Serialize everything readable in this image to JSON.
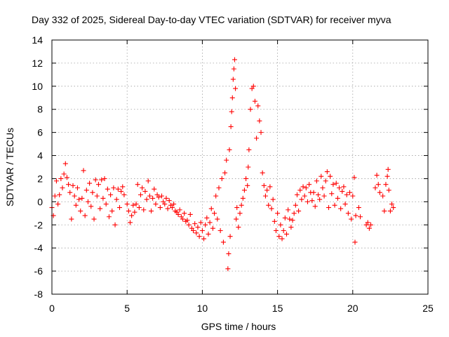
{
  "chart_data": {
    "type": "scatter",
    "title": "Day 332 of 2025, Sidereal Day-to-day VTEC variation (SDTVAR) for receiver myva",
    "xlabel": "GPS time / hours",
    "ylabel": "SDTVAR / TECUs",
    "xlim": [
      0,
      25
    ],
    "ylim": [
      -8,
      14
    ],
    "xticks": [
      0,
      5,
      10,
      15,
      20,
      25
    ],
    "xtick_labels": [
      "0",
      "5",
      "10",
      "15",
      "20",
      "25"
    ],
    "yticks": [
      -8,
      -6,
      -4,
      -2,
      0,
      2,
      4,
      6,
      8,
      10,
      12,
      14
    ],
    "ytick_labels": [
      "-8",
      "-6",
      "-4",
      "-2",
      "0",
      "2",
      "4",
      "6",
      "8",
      "10",
      "12",
      "14"
    ],
    "grid": true,
    "marker": "+",
    "color": "#ff0000",
    "series": [
      {
        "name": "SDTVAR",
        "points": [
          [
            0.0,
            -0.5
          ],
          [
            0.1,
            -1.2
          ],
          [
            0.2,
            0.5
          ],
          [
            0.3,
            1.8
          ],
          [
            0.4,
            -0.2
          ],
          [
            0.5,
            0.6
          ],
          [
            0.6,
            2.0
          ],
          [
            0.7,
            1.2
          ],
          [
            0.8,
            2.4
          ],
          [
            0.9,
            3.3
          ],
          [
            1.0,
            2.1
          ],
          [
            1.1,
            1.5
          ],
          [
            1.2,
            0.8
          ],
          [
            1.3,
            -1.5
          ],
          [
            1.4,
            1.4
          ],
          [
            1.5,
            0.5
          ],
          [
            1.6,
            -0.3
          ],
          [
            1.7,
            1.2
          ],
          [
            1.8,
            0.2
          ],
          [
            1.9,
            -0.8
          ],
          [
            2.0,
            0.3
          ],
          [
            2.1,
            2.7
          ],
          [
            2.2,
            -1.2
          ],
          [
            2.3,
            1.0
          ],
          [
            2.4,
            0.0
          ],
          [
            2.5,
            1.6
          ],
          [
            2.6,
            -0.4
          ],
          [
            2.7,
            0.8
          ],
          [
            2.8,
            -1.5
          ],
          [
            2.9,
            1.9
          ],
          [
            3.0,
            0.5
          ],
          [
            3.1,
            1.5
          ],
          [
            3.2,
            -0.6
          ],
          [
            3.3,
            1.9
          ],
          [
            3.4,
            0.3
          ],
          [
            3.5,
            2.0
          ],
          [
            3.6,
            -0.2
          ],
          [
            3.7,
            1.1
          ],
          [
            3.8,
            -1.3
          ],
          [
            3.9,
            0.6
          ],
          [
            4.0,
            -0.8
          ],
          [
            4.1,
            1.2
          ],
          [
            4.2,
            -2.0
          ],
          [
            4.3,
            0.2
          ],
          [
            4.4,
            1.1
          ],
          [
            4.5,
            -0.5
          ],
          [
            4.6,
            0.9
          ],
          [
            4.7,
            1.3
          ],
          [
            4.8,
            0.6
          ],
          [
            5.0,
            -0.2
          ],
          [
            5.1,
            -0.8
          ],
          [
            5.2,
            -1.8
          ],
          [
            5.3,
            -1.2
          ],
          [
            5.4,
            -0.3
          ],
          [
            5.5,
            -0.9
          ],
          [
            5.6,
            -0.2
          ],
          [
            5.7,
            1.5
          ],
          [
            5.8,
            -0.5
          ],
          [
            5.9,
            0.6
          ],
          [
            6.0,
            1.2
          ],
          [
            6.1,
            -0.7
          ],
          [
            6.2,
            0.9
          ],
          [
            6.3,
            0.2
          ],
          [
            6.4,
            1.8
          ],
          [
            6.5,
            0.5
          ],
          [
            6.6,
            -0.8
          ],
          [
            6.7,
            0.3
          ],
          [
            6.8,
            1.1
          ],
          [
            6.9,
            -0.2
          ],
          [
            7.0,
            0.6
          ],
          [
            7.1,
            0.4
          ],
          [
            7.2,
            -0.5
          ],
          [
            7.3,
            0.5
          ],
          [
            7.4,
            0.0
          ],
          [
            7.5,
            -0.2
          ],
          [
            7.6,
            0.3
          ],
          [
            7.7,
            -0.6
          ],
          [
            7.8,
            0.1
          ],
          [
            7.9,
            -0.3
          ],
          [
            8.0,
            -0.5
          ],
          [
            8.1,
            -0.2
          ],
          [
            8.2,
            -0.8
          ],
          [
            8.3,
            -0.9
          ],
          [
            8.4,
            -1.1
          ],
          [
            8.5,
            -0.7
          ],
          [
            8.6,
            -1.3
          ],
          [
            8.7,
            -1.5
          ],
          [
            8.8,
            -1.0
          ],
          [
            8.9,
            -1.7
          ],
          [
            9.0,
            -1.6
          ],
          [
            9.1,
            -2.0
          ],
          [
            9.2,
            -1.1
          ],
          [
            9.3,
            -2.3
          ],
          [
            9.4,
            -2.5
          ],
          [
            9.5,
            -1.9
          ],
          [
            9.6,
            -2.7
          ],
          [
            9.7,
            -2.2
          ],
          [
            9.8,
            -3.0
          ],
          [
            9.9,
            -1.8
          ],
          [
            10.0,
            -2.5
          ],
          [
            10.1,
            -3.2
          ],
          [
            10.2,
            -2.0
          ],
          [
            10.3,
            -1.4
          ],
          [
            10.4,
            -2.8
          ],
          [
            10.5,
            -1.8
          ],
          [
            10.6,
            -0.6
          ],
          [
            10.7,
            -2.3
          ],
          [
            10.8,
            -1.0
          ],
          [
            10.9,
            0.5
          ],
          [
            11.0,
            -1.5
          ],
          [
            11.1,
            1.2
          ],
          [
            11.2,
            -2.5
          ],
          [
            11.3,
            2.0
          ],
          [
            11.4,
            -3.5
          ],
          [
            11.5,
            2.5
          ],
          [
            11.6,
            3.6
          ],
          [
            11.7,
            -5.8
          ],
          [
            11.75,
            -4.5
          ],
          [
            11.8,
            4.5
          ],
          [
            11.85,
            -3.0
          ],
          [
            11.9,
            6.5
          ],
          [
            11.95,
            7.8
          ],
          [
            12.0,
            9.0
          ],
          [
            12.05,
            10.6
          ],
          [
            12.1,
            11.5
          ],
          [
            12.15,
            12.3
          ],
          [
            12.2,
            9.8
          ],
          [
            12.25,
            -1.5
          ],
          [
            12.3,
            -0.5
          ],
          [
            12.4,
            -2.2
          ],
          [
            12.5,
            -1.0
          ],
          [
            12.6,
            -0.3
          ],
          [
            12.7,
            0.3
          ],
          [
            12.8,
            1.0
          ],
          [
            12.9,
            2.0
          ],
          [
            13.0,
            1.4
          ],
          [
            13.05,
            3.0
          ],
          [
            13.1,
            4.5
          ],
          [
            13.2,
            8.0
          ],
          [
            13.3,
            9.8
          ],
          [
            13.4,
            10.0
          ],
          [
            13.5,
            8.7
          ],
          [
            13.6,
            5.5
          ],
          [
            13.7,
            8.3
          ],
          [
            13.8,
            7.0
          ],
          [
            13.9,
            6.0
          ],
          [
            14.0,
            2.5
          ],
          [
            14.1,
            1.4
          ],
          [
            14.2,
            0.5
          ],
          [
            14.3,
            1.0
          ],
          [
            14.4,
            -0.3
          ],
          [
            14.5,
            1.3
          ],
          [
            14.6,
            -0.6
          ],
          [
            14.7,
            0.2
          ],
          [
            14.8,
            -1.7
          ],
          [
            14.9,
            -2.5
          ],
          [
            15.0,
            -1.0
          ],
          [
            15.1,
            -3.0
          ],
          [
            15.2,
            -2.0
          ],
          [
            15.3,
            -3.2
          ],
          [
            15.4,
            -2.5
          ],
          [
            15.5,
            -1.4
          ],
          [
            15.6,
            -2.8
          ],
          [
            15.7,
            -0.7
          ],
          [
            15.8,
            -1.5
          ],
          [
            15.9,
            -2.2
          ],
          [
            16.0,
            -1.6
          ],
          [
            16.1,
            -1.0
          ],
          [
            16.2,
            -0.3
          ],
          [
            16.3,
            0.6
          ],
          [
            16.4,
            -0.8
          ],
          [
            16.5,
            1.0
          ],
          [
            16.6,
            0.2
          ],
          [
            16.7,
            1.3
          ],
          [
            16.8,
            0.5
          ],
          [
            16.9,
            1.2
          ],
          [
            17.0,
            0.0
          ],
          [
            17.1,
            1.5
          ],
          [
            17.2,
            0.8
          ],
          [
            17.3,
            0.1
          ],
          [
            17.4,
            0.8
          ],
          [
            17.5,
            -0.4
          ],
          [
            17.6,
            1.8
          ],
          [
            17.7,
            0.6
          ],
          [
            17.8,
            0.2
          ],
          [
            17.9,
            2.2
          ],
          [
            18.0,
            1.2
          ],
          [
            18.1,
            0.5
          ],
          [
            18.2,
            1.8
          ],
          [
            18.3,
            2.6
          ],
          [
            18.4,
            -0.5
          ],
          [
            18.5,
            2.2
          ],
          [
            18.6,
            0.7
          ],
          [
            18.7,
            1.5
          ],
          [
            18.8,
            -0.3
          ],
          [
            18.9,
            1.6
          ],
          [
            19.0,
            0.3
          ],
          [
            19.1,
            1.2
          ],
          [
            19.2,
            -0.6
          ],
          [
            19.3,
            0.9
          ],
          [
            19.4,
            1.3
          ],
          [
            19.5,
            -0.2
          ],
          [
            19.6,
            0.6
          ],
          [
            19.7,
            -1.0
          ],
          [
            19.8,
            0.8
          ],
          [
            19.9,
            -1.5
          ],
          [
            20.0,
            0.5
          ],
          [
            20.1,
            2.1
          ],
          [
            20.15,
            -3.5
          ],
          [
            20.2,
            -1.2
          ],
          [
            20.4,
            -0.5
          ],
          [
            20.5,
            -1.3
          ],
          [
            20.9,
            -2.0
          ],
          [
            21.0,
            -1.8
          ],
          [
            21.1,
            -2.3
          ],
          [
            21.2,
            -2.0
          ],
          [
            21.5,
            1.2
          ],
          [
            21.6,
            2.3
          ],
          [
            21.7,
            1.5
          ],
          [
            21.8,
            0.8
          ],
          [
            22.0,
            0.5
          ],
          [
            22.1,
            -0.8
          ],
          [
            22.2,
            1.5
          ],
          [
            22.3,
            2.2
          ],
          [
            22.35,
            2.8
          ],
          [
            22.4,
            1.0
          ],
          [
            22.5,
            -0.8
          ],
          [
            22.6,
            -0.2
          ],
          [
            22.7,
            -0.5
          ]
        ]
      }
    ]
  }
}
